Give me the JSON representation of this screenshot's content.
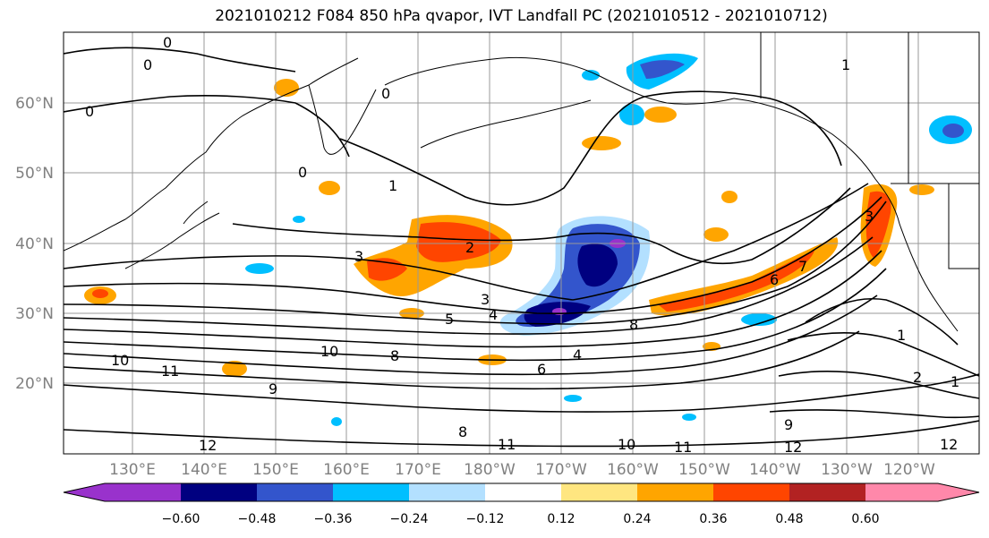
{
  "title": "2021010212 F084 850 hPa qvapor, IVT Landfall PC (2021010512 - 2021010712)",
  "lat_labels": [
    "60°N",
    "50°N",
    "40°N",
    "30°N",
    "20°N"
  ],
  "lon_labels": [
    "130°E",
    "140°E",
    "150°E",
    "160°E",
    "170°E",
    "180°W",
    "170°W",
    "160°W",
    "150°W",
    "140°W",
    "130°W",
    "120°W"
  ],
  "colorbar": {
    "colors": [
      "#9932cc",
      "#000080",
      "#3355cc",
      "#00bfff",
      "#b3e0ff",
      "#ffffff",
      "#ffe680",
      "#ffa500",
      "#ff4500",
      "#b22222",
      "#ff88aa"
    ],
    "labels": [
      "−0.60",
      "−0.48",
      "−0.36",
      "−0.24",
      "−0.12",
      "0.12",
      "0.24",
      "0.36",
      "0.48",
      "0.60"
    ]
  },
  "contour_labels": [
    "0",
    "0",
    "0",
    "0",
    "0",
    "1",
    "1",
    "2",
    "3",
    "3",
    "4",
    "5",
    "8",
    "10",
    "8",
    "4",
    "6",
    "9",
    "11",
    "10",
    "9",
    "12",
    "8",
    "11",
    "10",
    "11",
    "12",
    "12",
    "1",
    "2",
    "1",
    "7",
    "6",
    "3"
  ]
}
